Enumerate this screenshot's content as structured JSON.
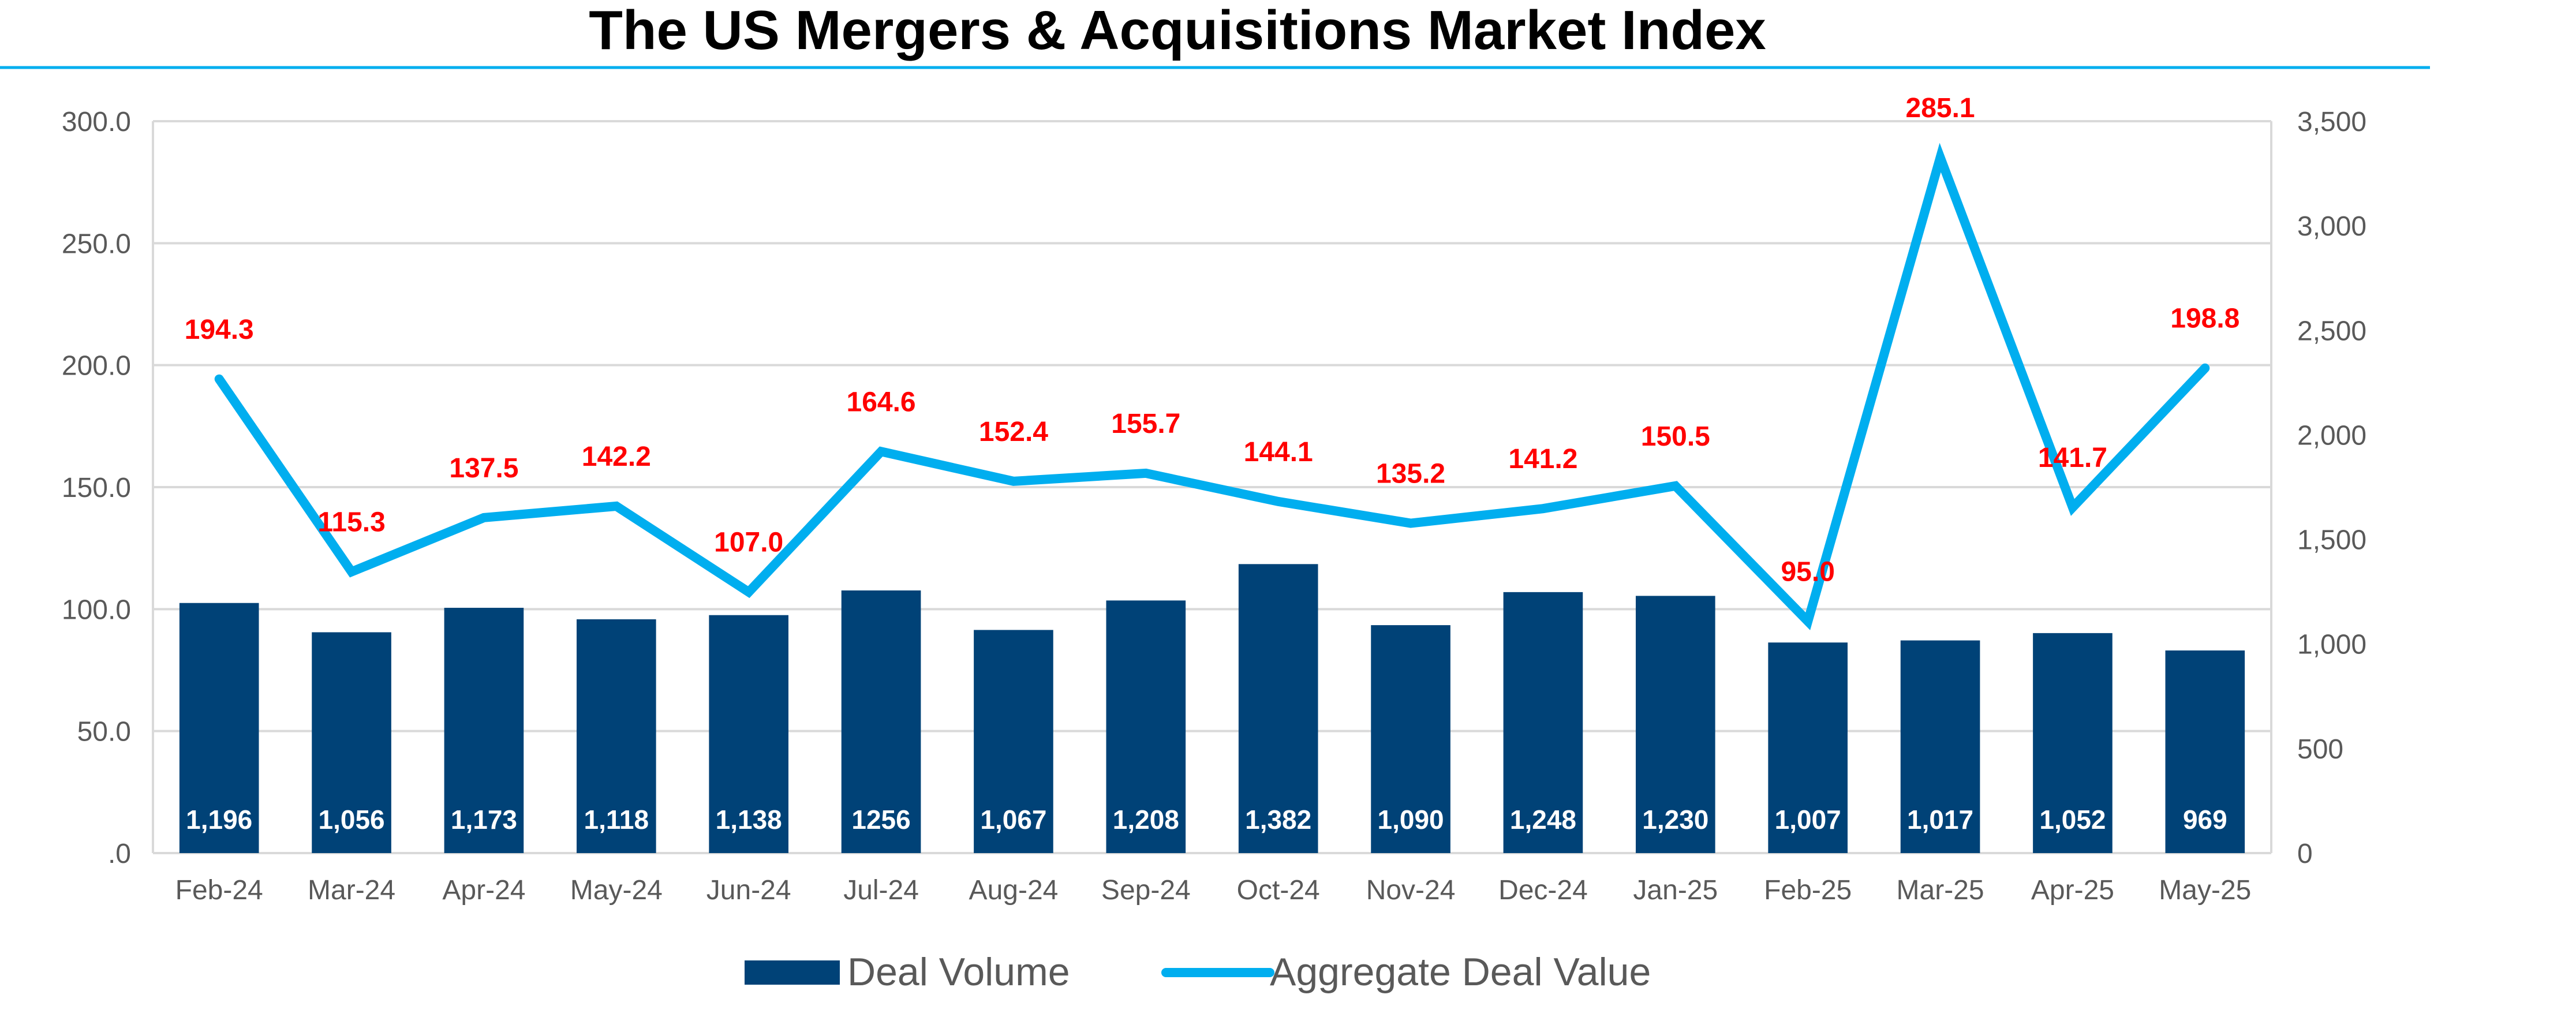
{
  "chart_data": {
    "type": "bar",
    "title": "The US Mergers & Acquisitions Market Index",
    "categories": [
      "Feb-24",
      "Mar-24",
      "Apr-24",
      "May-24",
      "Jun-24",
      "Jul-24",
      "Aug-24",
      "Sep-24",
      "Oct-24",
      "Nov-24",
      "Dec-24",
      "Jan-25",
      "Feb-25",
      "Mar-25",
      "Apr-25",
      "May-25"
    ],
    "series": [
      {
        "name": "Deal Volume",
        "type": "bar",
        "axis": "right",
        "values": [
          1196,
          1056,
          1173,
          1118,
          1138,
          1256,
          1067,
          1208,
          1382,
          1090,
          1248,
          1230,
          1007,
          1017,
          1052,
          969
        ],
        "labels": [
          "1,196",
          "1,056",
          "1,173",
          "1,118",
          "1,138",
          "1256",
          "1,067",
          "1,208",
          "1,382",
          "1,090",
          "1,248",
          "1,230",
          "1,007",
          "1,017",
          "1,052",
          "969"
        ],
        "color": "#004277"
      },
      {
        "name": "Aggregate Deal Value",
        "type": "line",
        "axis": "left",
        "values": [
          194.3,
          115.3,
          137.5,
          142.2,
          107.0,
          164.6,
          152.4,
          155.7,
          144.1,
          135.2,
          141.2,
          150.5,
          95.0,
          285.1,
          141.7,
          198.8
        ],
        "labels": [
          "194.3",
          "115.3",
          "137.5",
          "142.2",
          "107.0",
          "164.6",
          "152.4",
          "155.7",
          "144.1",
          "135.2",
          "141.2",
          "150.5",
          "95.0",
          "285.1",
          "141.7",
          "198.8"
        ],
        "color": "#00AEEF",
        "label_color": "#FF0000"
      }
    ],
    "y_left": {
      "ylim": [
        0,
        300
      ],
      "ticks": [
        ".0",
        "50.0",
        "100.0",
        "150.0",
        "200.0",
        "250.0",
        "300.0"
      ]
    },
    "y_right": {
      "ylim": [
        0,
        3500
      ],
      "ticks": [
        "0",
        "500",
        "1,000",
        "1,500",
        "2,000",
        "2,500",
        "3,000",
        "3,500"
      ]
    },
    "grid": true,
    "legend": "bottom-center",
    "title_rule_color": "#00AEEF",
    "grid_color": "#D9D9D9",
    "tick_color": "#595959"
  }
}
